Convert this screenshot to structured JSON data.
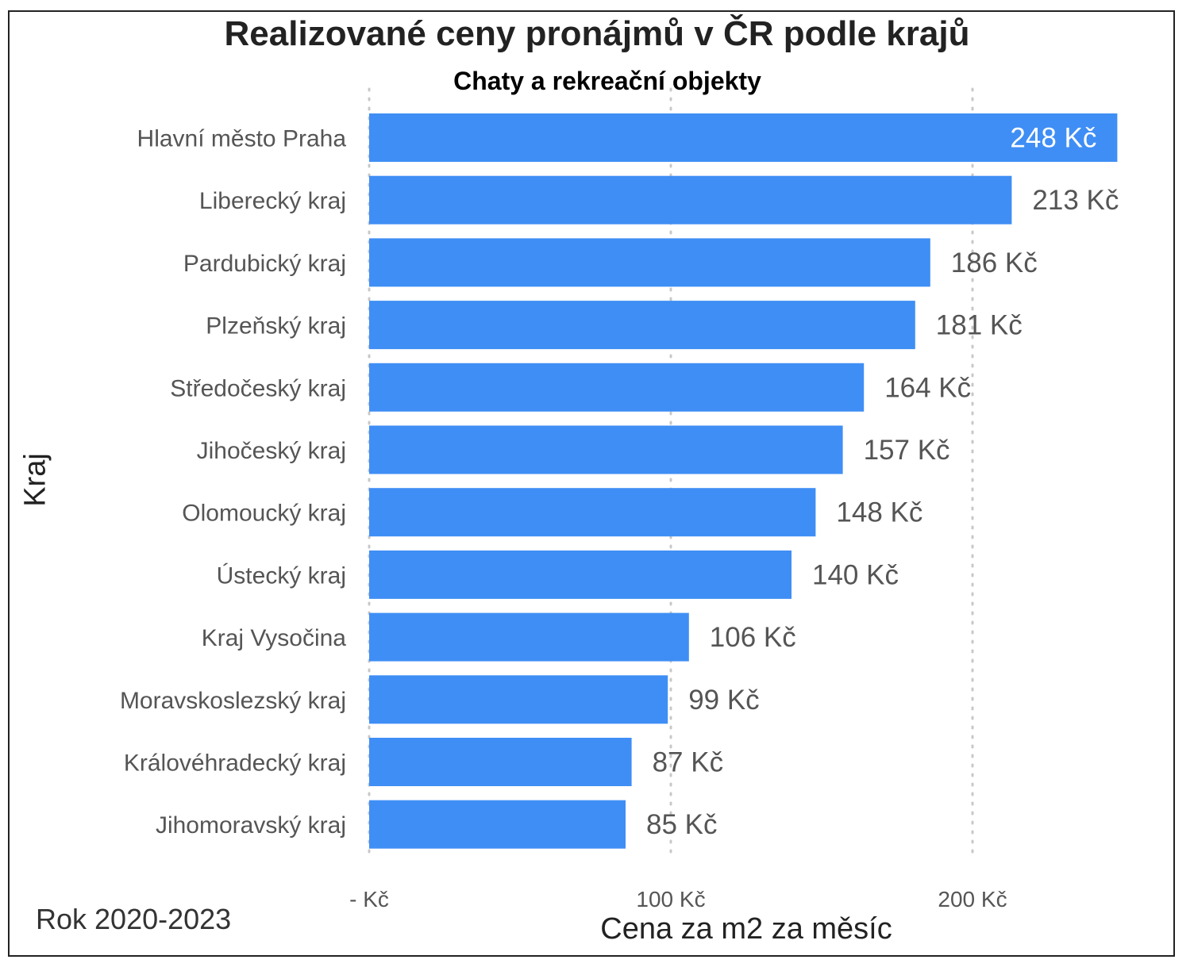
{
  "chart_data": {
    "type": "bar",
    "orientation": "horizontal",
    "title": "Realizované ceny pronájmů v ČR podle krajů",
    "subtitle": "Chaty a rekreační objekty",
    "xlabel": "Cena za m2 za měsíc",
    "ylabel": "Kraj",
    "footnote": "Rok 2020-2023",
    "categories": [
      "Hlavní město Praha",
      "Liberecký kraj",
      "Pardubický kraj",
      "Plzeňský kraj",
      "Středočeský kraj",
      "Jihočeský kraj",
      "Olomoucký kraj",
      "Ústecký kraj",
      "Kraj Vysočina",
      "Moravskoslezský kraj",
      "Královéhradecký kraj",
      "Jihomoravský kraj"
    ],
    "values": [
      248,
      213,
      186,
      181,
      164,
      157,
      148,
      140,
      106,
      99,
      87,
      85
    ],
    "value_labels": [
      "248 Kč",
      "213 Kč",
      "186 Kč",
      "181 Kč",
      "164 Kč",
      "157 Kč",
      "148 Kč",
      "140 Kč",
      "106 Kč",
      "99 Kč",
      "87 Kč",
      "85 Kč"
    ],
    "xticks": [
      0,
      100,
      200
    ],
    "xtick_labels": [
      "- Kč",
      "100 Kč",
      "200 Kč"
    ],
    "xlim": [
      0,
      248
    ],
    "grid": "vertical dotted",
    "bar_color": "#3f8ef5",
    "label_color": "#555555",
    "inside_label_color": "#ffffff"
  }
}
